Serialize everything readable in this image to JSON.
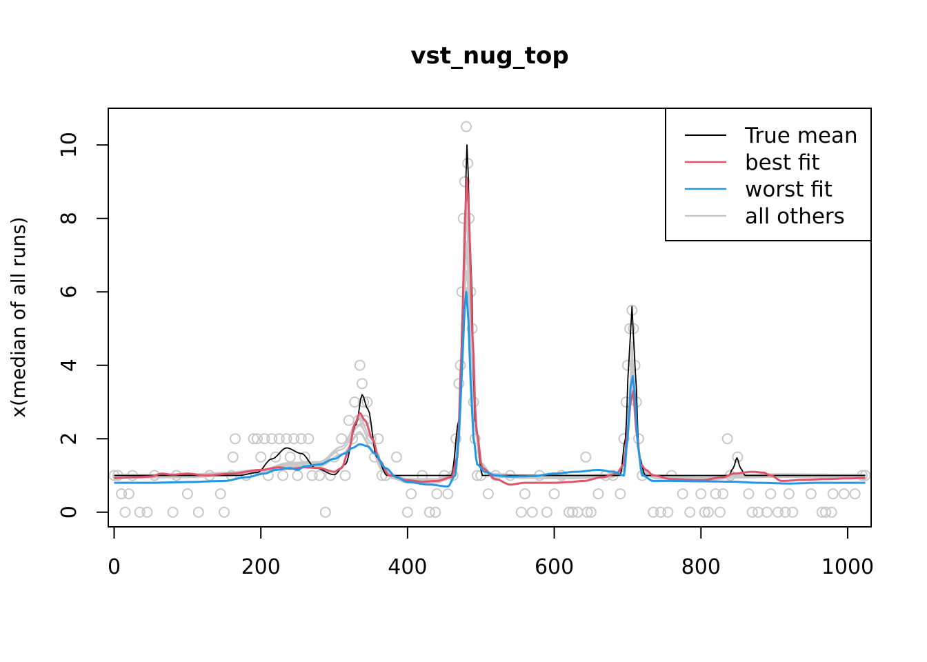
{
  "chart_data": {
    "type": "line",
    "title": "vst_nug_top",
    "xlabel": "",
    "ylabel": "x(median of all runs)",
    "xlim": [
      -8,
      1032
    ],
    "ylim": [
      -0.4,
      11
    ],
    "x_ticks": [
      0,
      200,
      400,
      600,
      800,
      1000
    ],
    "y_ticks": [
      0,
      2,
      4,
      6,
      8,
      10
    ],
    "legend_position": "top-right",
    "series": [
      {
        "name": "all others",
        "color": "#c8c8c8",
        "points": [
          [
            0,
            0.97
          ],
          [
            100,
            0.98
          ],
          [
            150,
            1.03
          ],
          [
            200,
            1.12
          ],
          [
            240,
            1.3
          ],
          [
            280,
            1.32
          ],
          [
            310,
            1.7
          ],
          [
            335,
            2.4
          ],
          [
            350,
            1.9
          ],
          [
            365,
            1.2
          ],
          [
            380,
            0.95
          ],
          [
            400,
            0.85
          ],
          [
            440,
            0.85
          ],
          [
            460,
            1.0
          ],
          [
            470,
            2.2
          ],
          [
            476,
            5.8
          ],
          [
            480,
            7.4
          ],
          [
            484,
            6.4
          ],
          [
            490,
            2.8
          ],
          [
            500,
            1.3
          ],
          [
            515,
            1.0
          ],
          [
            560,
            0.96
          ],
          [
            620,
            0.95
          ],
          [
            680,
            0.98
          ],
          [
            695,
            1.2
          ],
          [
            702,
            2.6
          ],
          [
            706,
            4.2
          ],
          [
            710,
            2.8
          ],
          [
            718,
            1.1
          ],
          [
            740,
            0.95
          ],
          [
            800,
            0.9
          ],
          [
            850,
            0.97
          ],
          [
            900,
            0.99
          ],
          [
            1024,
            0.97
          ]
        ]
      },
      {
        "name": "True mean",
        "color": "#000000",
        "points": [
          [
            0,
            1.0
          ],
          [
            170,
            1.0
          ],
          [
            195,
            1.08
          ],
          [
            215,
            1.45
          ],
          [
            235,
            1.75
          ],
          [
            255,
            1.6
          ],
          [
            275,
            1.2
          ],
          [
            300,
            1.02
          ],
          [
            315,
            1.3
          ],
          [
            330,
            2.4
          ],
          [
            338,
            3.2
          ],
          [
            346,
            2.8
          ],
          [
            358,
            1.5
          ],
          [
            372,
            1.0
          ],
          [
            460,
            1.0
          ],
          [
            470,
            2.5
          ],
          [
            476,
            6.0
          ],
          [
            481,
            10.0
          ],
          [
            486,
            7.0
          ],
          [
            492,
            2.5
          ],
          [
            502,
            1.0
          ],
          [
            690,
            1.0
          ],
          [
            697,
            2.0
          ],
          [
            702,
            4.2
          ],
          [
            706,
            5.6
          ],
          [
            710,
            4.0
          ],
          [
            716,
            1.5
          ],
          [
            724,
            1.0
          ],
          [
            838,
            1.0
          ],
          [
            844,
            1.2
          ],
          [
            849,
            1.48
          ],
          [
            854,
            1.2
          ],
          [
            860,
            1.0
          ],
          [
            1024,
            1.0
          ]
        ]
      },
      {
        "name": "best fit",
        "color": "#DF536B",
        "points": [
          [
            0,
            0.93
          ],
          [
            30,
            0.95
          ],
          [
            50,
            0.97
          ],
          [
            65,
            1.05
          ],
          [
            80,
            1.02
          ],
          [
            100,
            1.05
          ],
          [
            125,
            1.0
          ],
          [
            160,
            1.05
          ],
          [
            200,
            1.15
          ],
          [
            225,
            1.22
          ],
          [
            240,
            1.18
          ],
          [
            260,
            1.22
          ],
          [
            280,
            1.2
          ],
          [
            300,
            1.1
          ],
          [
            310,
            1.2
          ],
          [
            320,
            1.7
          ],
          [
            328,
            2.4
          ],
          [
            335,
            2.7
          ],
          [
            342,
            2.5
          ],
          [
            352,
            2.0
          ],
          [
            362,
            1.4
          ],
          [
            375,
            1.0
          ],
          [
            400,
            0.87
          ],
          [
            420,
            0.83
          ],
          [
            440,
            0.85
          ],
          [
            460,
            0.95
          ],
          [
            468,
            1.5
          ],
          [
            474,
            4.5
          ],
          [
            478,
            7.8
          ],
          [
            481,
            9.1
          ],
          [
            484,
            8.0
          ],
          [
            488,
            5.0
          ],
          [
            494,
            2.2
          ],
          [
            502,
            1.2
          ],
          [
            520,
            0.9
          ],
          [
            540,
            0.75
          ],
          [
            560,
            0.8
          ],
          [
            580,
            0.8
          ],
          [
            600,
            0.8
          ],
          [
            620,
            0.82
          ],
          [
            640,
            0.85
          ],
          [
            665,
            0.95
          ],
          [
            685,
            1.05
          ],
          [
            695,
            1.3
          ],
          [
            700,
            2.2
          ],
          [
            704,
            3.0
          ],
          [
            708,
            3.3
          ],
          [
            712,
            2.2
          ],
          [
            718,
            1.3
          ],
          [
            725,
            1.15
          ],
          [
            735,
            1.0
          ],
          [
            760,
            0.9
          ],
          [
            800,
            0.87
          ],
          [
            830,
            0.95
          ],
          [
            845,
            1.05
          ],
          [
            870,
            1.1
          ],
          [
            885,
            1.08
          ],
          [
            895,
            1.0
          ],
          [
            910,
            0.85
          ],
          [
            940,
            0.88
          ],
          [
            970,
            0.9
          ],
          [
            1000,
            0.92
          ],
          [
            1024,
            0.93
          ]
        ]
      },
      {
        "name": "worst fit",
        "color": "#2297E6",
        "points": [
          [
            0,
            0.8
          ],
          [
            50,
            0.8
          ],
          [
            100,
            0.82
          ],
          [
            150,
            0.85
          ],
          [
            180,
            0.95
          ],
          [
            205,
            1.05
          ],
          [
            220,
            1.15
          ],
          [
            240,
            1.2
          ],
          [
            250,
            1.15
          ],
          [
            260,
            1.25
          ],
          [
            280,
            1.3
          ],
          [
            300,
            1.45
          ],
          [
            315,
            1.6
          ],
          [
            325,
            1.75
          ],
          [
            335,
            1.85
          ],
          [
            345,
            1.8
          ],
          [
            355,
            1.6
          ],
          [
            370,
            1.2
          ],
          [
            385,
            0.95
          ],
          [
            400,
            0.82
          ],
          [
            430,
            0.75
          ],
          [
            455,
            0.7
          ],
          [
            465,
            1.0
          ],
          [
            470,
            2.0
          ],
          [
            474,
            3.8
          ],
          [
            478,
            5.6
          ],
          [
            480,
            6.0
          ],
          [
            483,
            5.2
          ],
          [
            486,
            3.5
          ],
          [
            490,
            2.0
          ],
          [
            495,
            1.3
          ],
          [
            505,
            1.1
          ],
          [
            520,
            1.0
          ],
          [
            540,
            0.97
          ],
          [
            570,
            0.98
          ],
          [
            600,
            1.05
          ],
          [
            630,
            1.1
          ],
          [
            660,
            1.15
          ],
          [
            680,
            1.1
          ],
          [
            695,
            1.0
          ],
          [
            700,
            2.0
          ],
          [
            704,
            3.4
          ],
          [
            707,
            3.7
          ],
          [
            710,
            3.2
          ],
          [
            714,
            1.8
          ],
          [
            720,
            1.0
          ],
          [
            735,
            0.85
          ],
          [
            760,
            0.85
          ],
          [
            800,
            0.84
          ],
          [
            840,
            0.83
          ],
          [
            880,
            0.8
          ],
          [
            920,
            0.78
          ],
          [
            960,
            0.8
          ],
          [
            1000,
            0.8
          ],
          [
            1024,
            0.8
          ]
        ]
      }
    ],
    "scatter_color": "#c8c8c8",
    "scatter": [
      [
        0,
        1
      ],
      [
        5,
        1
      ],
      [
        10,
        0.5
      ],
      [
        15,
        0
      ],
      [
        20,
        0.5
      ],
      [
        25,
        1
      ],
      [
        35,
        0
      ],
      [
        45,
        0
      ],
      [
        55,
        1
      ],
      [
        80,
        0
      ],
      [
        85,
        1
      ],
      [
        100,
        0.5
      ],
      [
        115,
        0
      ],
      [
        130,
        1
      ],
      [
        145,
        0.5
      ],
      [
        150,
        0
      ],
      [
        160,
        1
      ],
      [
        162,
        1.5
      ],
      [
        165,
        2
      ],
      [
        180,
        1
      ],
      [
        190,
        2
      ],
      [
        195,
        2
      ],
      [
        200,
        1.5
      ],
      [
        205,
        2
      ],
      [
        210,
        1
      ],
      [
        215,
        2
      ],
      [
        220,
        1.5
      ],
      [
        225,
        2
      ],
      [
        230,
        1
      ],
      [
        235,
        2
      ],
      [
        240,
        1.5
      ],
      [
        245,
        2
      ],
      [
        250,
        1
      ],
      [
        255,
        2
      ],
      [
        260,
        1.5
      ],
      [
        265,
        2
      ],
      [
        270,
        1
      ],
      [
        280,
        1
      ],
      [
        288,
        0
      ],
      [
        295,
        1
      ],
      [
        300,
        1.5
      ],
      [
        310,
        2
      ],
      [
        315,
        1
      ],
      [
        320,
        2.5
      ],
      [
        325,
        2
      ],
      [
        328,
        3
      ],
      [
        333,
        2.5
      ],
      [
        335,
        4
      ],
      [
        338,
        3.5
      ],
      [
        340,
        3
      ],
      [
        342,
        2.5
      ],
      [
        345,
        3
      ],
      [
        350,
        2
      ],
      [
        355,
        1.5
      ],
      [
        360,
        2
      ],
      [
        365,
        1
      ],
      [
        370,
        1
      ],
      [
        385,
        1.5
      ],
      [
        400,
        0
      ],
      [
        405,
        0.5
      ],
      [
        420,
        1
      ],
      [
        430,
        0
      ],
      [
        438,
        0
      ],
      [
        440,
        0.5
      ],
      [
        450,
        1
      ],
      [
        455,
        0.5
      ],
      [
        462,
        1
      ],
      [
        466,
        2
      ],
      [
        470,
        3.5
      ],
      [
        472,
        4
      ],
      [
        474,
        6
      ],
      [
        476,
        8
      ],
      [
        478,
        9
      ],
      [
        480,
        10.5
      ],
      [
        482,
        9.5
      ],
      [
        484,
        8
      ],
      [
        486,
        6
      ],
      [
        488,
        5
      ],
      [
        490,
        3
      ],
      [
        492,
        2
      ],
      [
        495,
        1
      ],
      [
        500,
        1
      ],
      [
        510,
        0.5
      ],
      [
        520,
        1
      ],
      [
        540,
        1
      ],
      [
        555,
        0
      ],
      [
        560,
        0.5
      ],
      [
        570,
        0
      ],
      [
        580,
        1
      ],
      [
        590,
        0
      ],
      [
        600,
        0.5
      ],
      [
        610,
        1
      ],
      [
        620,
        0
      ],
      [
        625,
        0
      ],
      [
        632,
        0
      ],
      [
        643,
        1.5
      ],
      [
        645,
        0
      ],
      [
        650,
        0
      ],
      [
        660,
        0.5
      ],
      [
        670,
        1
      ],
      [
        680,
        1
      ],
      [
        690,
        0.5
      ],
      [
        695,
        2
      ],
      [
        698,
        3
      ],
      [
        700,
        4
      ],
      [
        703,
        5
      ],
      [
        706,
        5.5
      ],
      [
        708,
        5
      ],
      [
        710,
        4
      ],
      [
        712,
        3
      ],
      [
        715,
        2
      ],
      [
        720,
        1
      ],
      [
        735,
        0
      ],
      [
        745,
        0
      ],
      [
        755,
        0
      ],
      [
        760,
        1
      ],
      [
        775,
        0.5
      ],
      [
        785,
        0
      ],
      [
        800,
        0.5
      ],
      [
        805,
        0
      ],
      [
        810,
        0
      ],
      [
        820,
        0.5
      ],
      [
        826,
        0
      ],
      [
        830,
        0.5
      ],
      [
        836,
        2
      ],
      [
        840,
        1
      ],
      [
        850,
        1.5
      ],
      [
        865,
        0.5
      ],
      [
        870,
        0
      ],
      [
        878,
        0
      ],
      [
        890,
        0
      ],
      [
        895,
        0.5
      ],
      [
        905,
        0
      ],
      [
        915,
        0
      ],
      [
        920,
        0.5
      ],
      [
        925,
        0
      ],
      [
        950,
        0.5
      ],
      [
        965,
        0
      ],
      [
        970,
        0
      ],
      [
        978,
        0
      ],
      [
        980,
        0.5
      ],
      [
        995,
        0.5
      ],
      [
        1010,
        0.5
      ],
      [
        1020,
        1
      ],
      [
        1024,
        1
      ]
    ]
  }
}
